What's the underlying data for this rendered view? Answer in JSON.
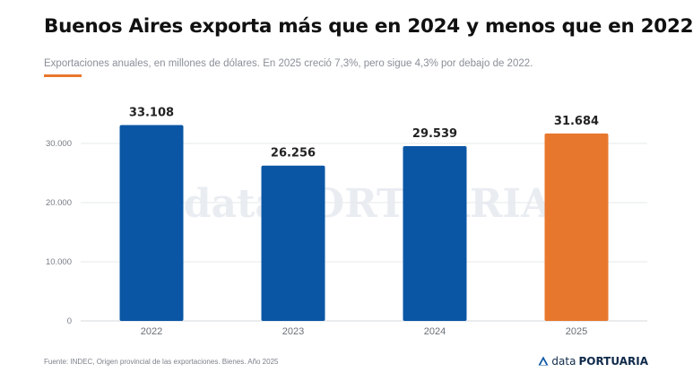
{
  "header": {
    "title": "Buenos Aires exporta más que en 2024 y menos que en 2022",
    "subtitle": "Exportaciones anuales, en millones de dólares. En 2025 creció 7,3%, pero sigue 4,3% por debajo de 2022."
  },
  "watermark": "dataPORTUARIA",
  "footer": {
    "source": "Fuente: INDEC, Origen provincial de las exportaciones. Bienes. Año 2025",
    "brand_prefix": "data",
    "brand_name": "PORTUARIA"
  },
  "colors": {
    "primary_bar": "#0a56a5",
    "highlight_bar": "#e8772e",
    "accent": "#e8772e"
  },
  "chart_data": {
    "type": "bar",
    "categories": [
      "2022",
      "2023",
      "2024",
      "2025"
    ],
    "values": [
      33108,
      26256,
      29539,
      31684
    ],
    "value_labels": [
      "33.108",
      "26.256",
      "29.539",
      "31.684"
    ],
    "highlight_index": 3,
    "yticks": [
      0,
      10000,
      20000,
      30000
    ],
    "ytick_labels": [
      "0",
      "10.000",
      "20.000",
      "30.000"
    ],
    "ylim": [
      0,
      36000
    ],
    "grid": true,
    "legend": "none"
  }
}
